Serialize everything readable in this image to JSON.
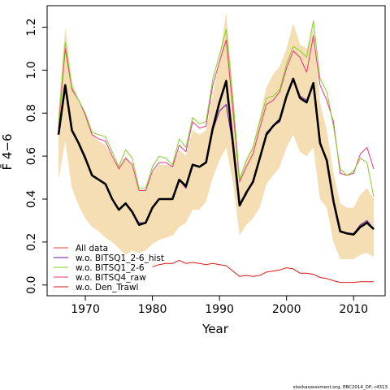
{
  "chart_data": {
    "type": "line",
    "xlabel": "Year",
    "ylabel": "F̄ 4−6",
    "xlim": [
      1964.3,
      2014.7
    ],
    "ylim": [
      -0.05,
      1.3
    ],
    "x_ticks": [
      1970,
      1980,
      1990,
      2000,
      2010
    ],
    "x_tick_labels": [
      "1970",
      "1980",
      "1990",
      "2000",
      "2010"
    ],
    "y_ticks": [
      0.0,
      0.2,
      0.4,
      0.6,
      0.8,
      1.0,
      1.2
    ],
    "y_tick_labels": [
      "0.0",
      "0.2",
      "0.4",
      "0.6",
      "0.8",
      "1.0",
      "1.2"
    ],
    "grid": false,
    "legend_position": "bottom-left",
    "colors": {
      "band": "#f5deb3",
      "all_data": "#e8413a",
      "hist": "#6a0dad",
      "q1_2_6": "#7fd320",
      "q4_raw": "#f0327a",
      "den_trawl": "#e01818",
      "main": "#000000"
    },
    "x": [
      1966,
      1967,
      1968,
      1969,
      1970,
      1971,
      1972,
      1973,
      1974,
      1975,
      1976,
      1977,
      1978,
      1979,
      1980,
      1981,
      1982,
      1983,
      1984,
      1985,
      1986,
      1987,
      1988,
      1989,
      1990,
      1991,
      1992,
      1993,
      1994,
      1995,
      1996,
      1997,
      1998,
      1999,
      2000,
      2001,
      2002,
      2003,
      2004,
      2005,
      2006,
      2007,
      2008,
      2009,
      2010,
      2011,
      2012,
      2013
    ],
    "band_upper": [
      0.82,
      1.2,
      0.95,
      0.85,
      0.78,
      0.7,
      0.67,
      0.65,
      0.6,
      0.55,
      0.6,
      0.56,
      0.44,
      0.44,
      0.52,
      0.56,
      0.56,
      0.55,
      0.63,
      0.6,
      0.72,
      0.7,
      0.72,
      0.88,
      1.05,
      1.27,
      0.9,
      0.5,
      0.58,
      0.65,
      0.78,
      0.92,
      0.98,
      1.02,
      1.1,
      1.22,
      1.12,
      1.1,
      1.2,
      0.85,
      0.72,
      0.52,
      0.38,
      0.36,
      0.36,
      0.42,
      0.45,
      0.4
    ],
    "band_lower": [
      0.49,
      0.67,
      0.45,
      0.37,
      0.31,
      0.27,
      0.25,
      0.22,
      0.2,
      0.17,
      0.14,
      0.16,
      0.15,
      0.16,
      0.19,
      0.21,
      0.22,
      0.23,
      0.27,
      0.29,
      0.35,
      0.35,
      0.39,
      0.5,
      0.58,
      0.64,
      0.48,
      0.23,
      0.28,
      0.31,
      0.36,
      0.47,
      0.51,
      0.55,
      0.64,
      0.7,
      0.62,
      0.6,
      0.64,
      0.4,
      0.36,
      0.2,
      0.12,
      0.12,
      0.12,
      0.14,
      0.15,
      0.13
    ],
    "series": [
      {
        "name": "w.o. Den_Trawl",
        "color_key": "den_trawl",
        "width": 1,
        "values": [
          null,
          null,
          null,
          null,
          null,
          null,
          null,
          null,
          null,
          null,
          null,
          null,
          null,
          null,
          0.085,
          0.095,
          0.1,
          0.1,
          0.115,
          0.1,
          0.105,
          0.1,
          0.095,
          0.1,
          0.095,
          0.09,
          0.065,
          0.04,
          0.045,
          0.04,
          0.045,
          0.06,
          0.065,
          0.07,
          0.08,
          0.075,
          0.055,
          0.055,
          0.05,
          0.035,
          0.03,
          0.02,
          0.012,
          0.012,
          0.012,
          0.015,
          0.015,
          0.015
        ]
      },
      {
        "name": "w.o. BITSQ4_raw",
        "color_key": "q4_raw",
        "width": 1,
        "values": [
          0.73,
          1.1,
          0.91,
          0.86,
          0.79,
          0.7,
          0.68,
          0.67,
          0.6,
          0.54,
          0.59,
          0.56,
          0.44,
          0.44,
          0.53,
          0.57,
          0.57,
          0.55,
          0.65,
          0.62,
          0.76,
          0.73,
          0.74,
          0.93,
          1.04,
          1.14,
          0.82,
          0.48,
          0.55,
          0.61,
          0.73,
          0.84,
          0.86,
          0.9,
          1.01,
          1.09,
          1.06,
          0.99,
          1.16,
          0.93,
          0.86,
          0.76,
          0.52,
          0.51,
          0.52,
          0.61,
          0.64,
          0.54
        ]
      },
      {
        "name": "w.o. BITSQ1_2-6",
        "color_key": "q1_2_6",
        "width": 1,
        "values": [
          0.75,
          1.13,
          0.92,
          0.86,
          0.8,
          0.71,
          0.7,
          0.69,
          0.62,
          0.55,
          0.63,
          0.59,
          0.45,
          0.45,
          0.55,
          0.6,
          0.59,
          0.56,
          0.68,
          0.64,
          0.78,
          0.75,
          0.76,
          0.96,
          1.07,
          1.19,
          0.87,
          0.49,
          0.58,
          0.64,
          0.76,
          0.87,
          0.88,
          0.91,
          1.03,
          1.11,
          1.09,
          1.06,
          1.23,
          0.96,
          0.9,
          0.74,
          0.54,
          0.51,
          0.53,
          0.59,
          0.57,
          0.41
        ]
      },
      {
        "name": "w.o. BITSQ1_2-6_hist",
        "color_key": "hist",
        "width": 1,
        "values": [
          0.7,
          0.92,
          0.72,
          0.66,
          0.6,
          0.51,
          0.49,
          0.47,
          0.4,
          0.35,
          0.38,
          0.34,
          0.29,
          0.29,
          0.36,
          0.4,
          0.4,
          0.4,
          0.49,
          0.45,
          0.56,
          0.55,
          0.57,
          0.72,
          0.81,
          0.84,
          0.65,
          0.37,
          0.42,
          0.49,
          0.59,
          0.71,
          0.74,
          0.76,
          0.87,
          0.96,
          0.88,
          0.86,
          0.94,
          0.67,
          0.57,
          0.4,
          0.25,
          0.24,
          0.24,
          0.28,
          0.3,
          0.26
        ]
      },
      {
        "name": "All data",
        "color_key": "all_data",
        "width": 1,
        "values": [
          0.7,
          0.93,
          0.72,
          0.66,
          0.59,
          0.51,
          0.49,
          0.47,
          0.4,
          0.35,
          0.38,
          0.34,
          0.28,
          0.29,
          0.36,
          0.4,
          0.4,
          0.4,
          0.49,
          0.46,
          0.56,
          0.55,
          0.57,
          0.73,
          0.85,
          0.95,
          0.66,
          0.37,
          0.43,
          0.48,
          0.59,
          0.7,
          0.74,
          0.77,
          0.88,
          0.96,
          0.87,
          0.85,
          0.94,
          0.66,
          0.58,
          0.39,
          0.25,
          0.24,
          0.235,
          0.27,
          0.29,
          0.26
        ]
      },
      {
        "name": "",
        "color_key": "main",
        "width": 2.6,
        "legend": false,
        "values": [
          0.7,
          0.93,
          0.72,
          0.66,
          0.59,
          0.51,
          0.49,
          0.47,
          0.4,
          0.35,
          0.38,
          0.34,
          0.28,
          0.29,
          0.36,
          0.4,
          0.4,
          0.4,
          0.49,
          0.46,
          0.56,
          0.55,
          0.57,
          0.73,
          0.85,
          0.95,
          0.66,
          0.37,
          0.43,
          0.48,
          0.59,
          0.7,
          0.74,
          0.77,
          0.88,
          0.96,
          0.87,
          0.85,
          0.94,
          0.66,
          0.58,
          0.39,
          0.25,
          0.24,
          0.235,
          0.27,
          0.29,
          0.26
        ]
      }
    ],
    "legend": [
      {
        "label": "All data",
        "color_key": "all_data"
      },
      {
        "label": "w.o. BITSQ1_2-6_hist",
        "color_key": "hist"
      },
      {
        "label": "w.o. BITSQ1_2-6",
        "color_key": "q1_2_6"
      },
      {
        "label": "w.o. BITSQ4_raw",
        "color_key": "q4_raw"
      },
      {
        "label": "w.o. Den_Trawl",
        "color_key": "den_trawl"
      }
    ]
  },
  "footer": "stockassessment.org, EBC2014_DP, r4313"
}
